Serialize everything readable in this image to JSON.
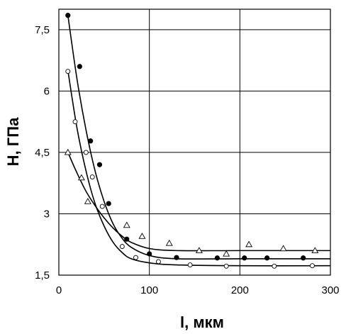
{
  "chart_data": {
    "type": "scatter",
    "title": "",
    "xlabel": "l, мкм",
    "ylabel": "H, ГПа",
    "xlim": [
      0,
      300
    ],
    "ylim": [
      1.5,
      8.0
    ],
    "x_ticks": [
      "0",
      "100",
      "200",
      "300"
    ],
    "y_ticks": [
      "1,5",
      "3",
      "4,5",
      "6",
      "7,5"
    ],
    "x_tick_values": [
      0,
      100,
      200,
      300
    ],
    "y_tick_values": [
      1.5,
      3,
      4.5,
      6,
      7.5
    ],
    "grid": true,
    "series": [
      {
        "marker": "filled-circle",
        "points": [
          [
            10,
            7.85
          ],
          [
            23,
            6.6
          ],
          [
            35,
            4.78
          ],
          [
            45,
            4.2
          ],
          [
            55,
            3.25
          ],
          [
            75,
            2.38
          ],
          [
            100,
            2.02
          ],
          [
            130,
            1.93
          ],
          [
            175,
            1.92
          ],
          [
            205,
            1.92
          ],
          [
            230,
            1.92
          ],
          [
            270,
            1.92
          ]
        ],
        "fit": [
          [
            10,
            7.85
          ],
          [
            20,
            6.3
          ],
          [
            30,
            5.05
          ],
          [
            40,
            4.05
          ],
          [
            50,
            3.3
          ],
          [
            60,
            2.75
          ],
          [
            70,
            2.4
          ],
          [
            80,
            2.18
          ],
          [
            100,
            1.98
          ],
          [
            130,
            1.9
          ],
          [
            200,
            1.9
          ],
          [
            300,
            1.9
          ]
        ]
      },
      {
        "marker": "open-circle",
        "points": [
          [
            10,
            6.48
          ],
          [
            18,
            5.25
          ],
          [
            30,
            4.5
          ],
          [
            37,
            3.9
          ],
          [
            48,
            3.18
          ],
          [
            70,
            2.2
          ],
          [
            85,
            1.93
          ],
          [
            110,
            1.83
          ],
          [
            145,
            1.75
          ],
          [
            185,
            1.72
          ],
          [
            238,
            1.72
          ],
          [
            280,
            1.73
          ]
        ],
        "fit": [
          [
            10,
            6.5
          ],
          [
            20,
            5.1
          ],
          [
            30,
            4.05
          ],
          [
            40,
            3.25
          ],
          [
            50,
            2.7
          ],
          [
            60,
            2.3
          ],
          [
            70,
            2.05
          ],
          [
            80,
            1.9
          ],
          [
            100,
            1.8
          ],
          [
            130,
            1.75
          ],
          [
            200,
            1.73
          ],
          [
            300,
            1.73
          ]
        ]
      },
      {
        "marker": "open-triangle",
        "points": [
          [
            10,
            4.5
          ],
          [
            25,
            3.88
          ],
          [
            32,
            3.3
          ],
          [
            75,
            2.72
          ],
          [
            92,
            2.45
          ],
          [
            122,
            2.28
          ],
          [
            155,
            2.1
          ],
          [
            185,
            2.02
          ],
          [
            210,
            2.25
          ],
          [
            248,
            2.15
          ],
          [
            283,
            2.1
          ]
        ],
        "fit": [
          [
            10,
            4.5
          ],
          [
            20,
            4.0
          ],
          [
            30,
            3.55
          ],
          [
            40,
            3.2
          ],
          [
            50,
            2.9
          ],
          [
            60,
            2.65
          ],
          [
            70,
            2.45
          ],
          [
            80,
            2.3
          ],
          [
            100,
            2.15
          ],
          [
            130,
            2.1
          ],
          [
            200,
            2.1
          ],
          [
            300,
            2.1
          ]
        ]
      }
    ]
  }
}
